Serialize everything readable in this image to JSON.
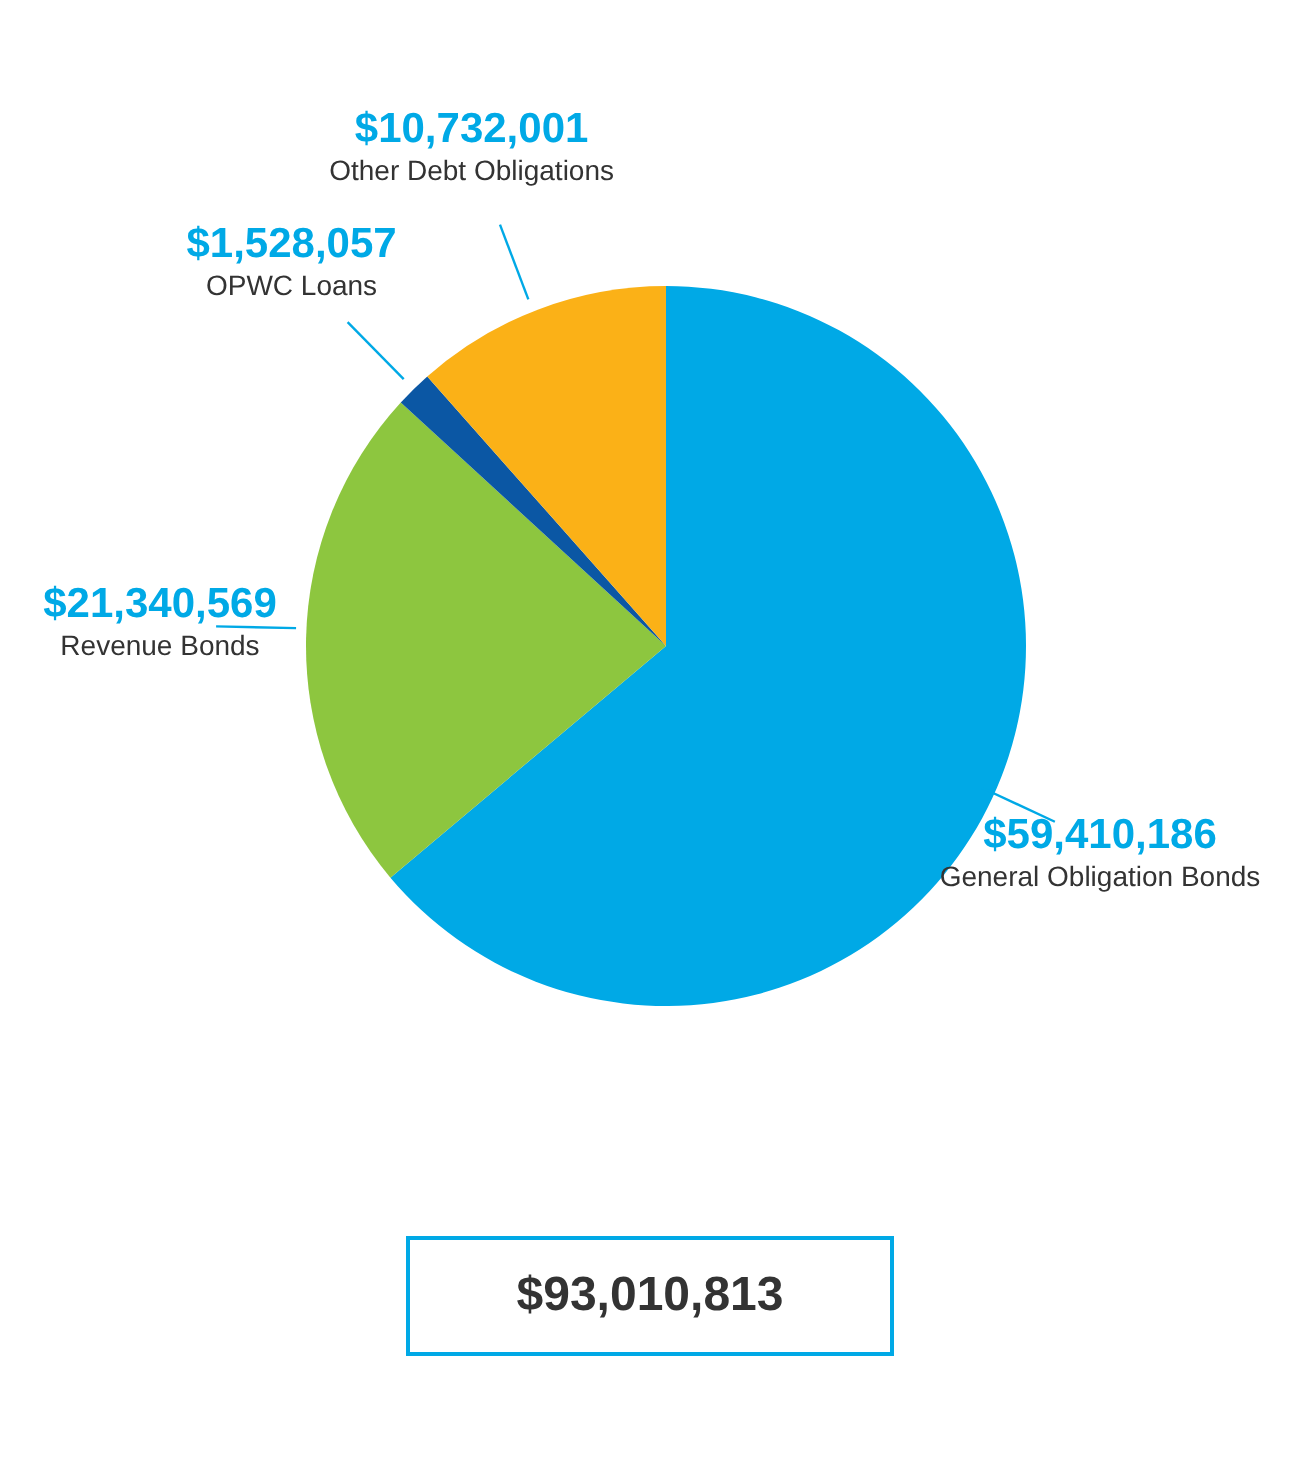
{
  "chart_data": {
    "type": "pie",
    "categories": [
      "General Obligation Bonds",
      "Revenue Bonds",
      "OPWC Loans",
      "Other Debt Obligations"
    ],
    "values": [
      59410186,
      21340569,
      1528057,
      10732001
    ],
    "colors": [
      "#00a9e6",
      "#8dc63f",
      "#0b57a4",
      "#fbb117"
    ],
    "value_labels": [
      "$59,410,186",
      "$21,340,569",
      "$1,528,057",
      "$10,732,001"
    ],
    "annotations": [
      "$93,010,813"
    ]
  }
}
